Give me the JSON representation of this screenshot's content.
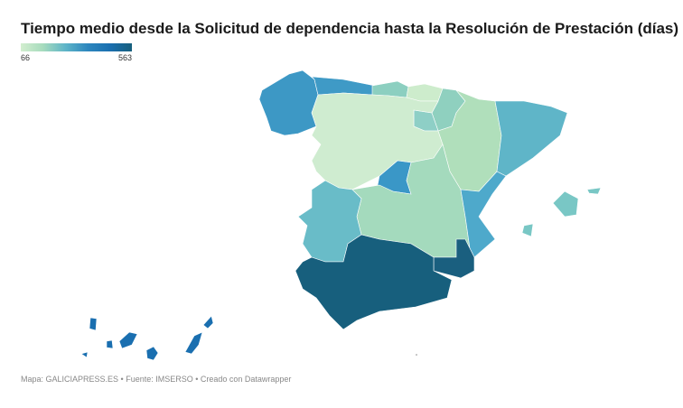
{
  "title": "Tiempo medio desde la Solicitud de dependencia hasta la Resolución de Prestación (días)",
  "legend": {
    "min": "66",
    "max": "563",
    "colors": [
      "#d3eecf",
      "#a6dbbd",
      "#5fb5c8",
      "#2d87be",
      "#1a6fb0",
      "#175f7d"
    ]
  },
  "footer": "Mapa: GALICIAPRESS.ES • Fuente: IMSERSO • Creado con Datawrapper",
  "regions": [
    {
      "name": "Galicia",
      "color": "#3d98c5"
    },
    {
      "name": "Asturias",
      "color": "#3f9ac6"
    },
    {
      "name": "Cantabria",
      "color": "#8ccfc0"
    },
    {
      "name": "País Vasco",
      "color": "#cdeccc"
    },
    {
      "name": "Navarra",
      "color": "#8fd0bf"
    },
    {
      "name": "La Rioja",
      "color": "#8ecfc6"
    },
    {
      "name": "Castilla y León",
      "color": "#cfecd0"
    },
    {
      "name": "Madrid",
      "color": "#3a97c7"
    },
    {
      "name": "Aragón",
      "color": "#b0dfbb"
    },
    {
      "name": "Cataluña",
      "color": "#5fb5c8"
    },
    {
      "name": "Castilla-La Mancha",
      "color": "#a4dabd"
    },
    {
      "name": "Valencia",
      "color": "#4ea9cb"
    },
    {
      "name": "Extremadura",
      "color": "#69bcc8"
    },
    {
      "name": "Murcia",
      "color": "#1a5f7f"
    },
    {
      "name": "Andalucía",
      "color": "#175f7d"
    },
    {
      "name": "Baleares",
      "color": "#79c7c5"
    },
    {
      "name": "Canarias",
      "color": "#1a6fb0"
    }
  ]
}
